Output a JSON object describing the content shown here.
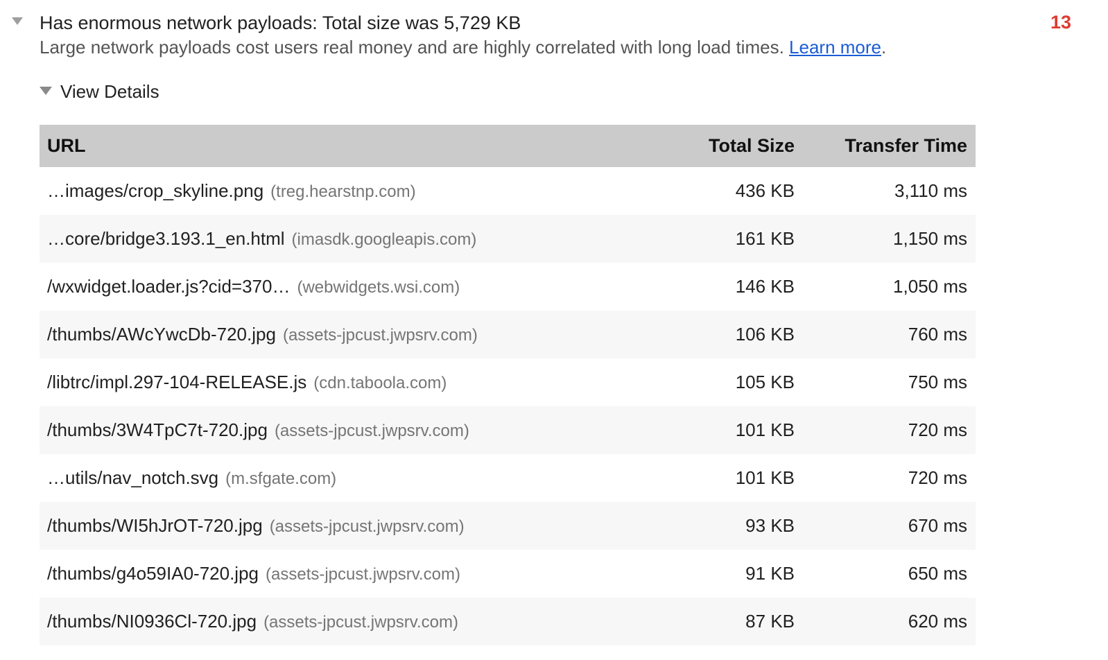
{
  "audit": {
    "title": "Has enormous network payloads: Total size was 5,729 KB",
    "description_text": "Large network payloads cost users real money and are highly correlated with long load times. ",
    "learn_more_label": "Learn more",
    "learn_more_suffix": ".",
    "count_badge": "13",
    "view_details_label": "View Details",
    "expand_state": "expanded"
  },
  "table": {
    "columns": [
      "URL",
      "Total Size",
      "Transfer Time"
    ],
    "rows": [
      {
        "url": "…images/crop_skyline.png",
        "host": "(treg.hearstnp.com)",
        "size": "436 KB",
        "time": "3,110 ms"
      },
      {
        "url": "…core/bridge3.193.1_en.html",
        "host": "(imasdk.googleapis.com)",
        "size": "161 KB",
        "time": "1,150 ms"
      },
      {
        "url": "/wxwidget.loader.js?cid=370…",
        "host": "(webwidgets.wsi.com)",
        "size": "146 KB",
        "time": "1,050 ms"
      },
      {
        "url": "/thumbs/AWcYwcDb-720.jpg",
        "host": "(assets-jpcust.jwpsrv.com)",
        "size": "106 KB",
        "time": "760 ms"
      },
      {
        "url": "/libtrc/impl.297-104-RELEASE.js",
        "host": "(cdn.taboola.com)",
        "size": "105 KB",
        "time": "750 ms"
      },
      {
        "url": "/thumbs/3W4TpC7t-720.jpg",
        "host": "(assets-jpcust.jwpsrv.com)",
        "size": "101 KB",
        "time": "720 ms"
      },
      {
        "url": "…utils/nav_notch.svg",
        "host": "(m.sfgate.com)",
        "size": "101 KB",
        "time": "720 ms"
      },
      {
        "url": "/thumbs/WI5hJrOT-720.jpg",
        "host": "(assets-jpcust.jwpsrv.com)",
        "size": "93 KB",
        "time": "670 ms"
      },
      {
        "url": "/thumbs/g4o59IA0-720.jpg",
        "host": "(assets-jpcust.jwpsrv.com)",
        "size": "91 KB",
        "time": "650 ms"
      },
      {
        "url": "/thumbs/NI0936Cl-720.jpg",
        "host": "(assets-jpcust.jwpsrv.com)",
        "size": "87 KB",
        "time": "620 ms"
      }
    ]
  },
  "colors": {
    "link_blue": "#1a5cd6",
    "badge_red": "#dd3b31",
    "table_header_bg": "#cbcbcb",
    "row_stripe_bg": "#f7f7f7",
    "host_text": "#757575",
    "main_text": "#212121"
  }
}
